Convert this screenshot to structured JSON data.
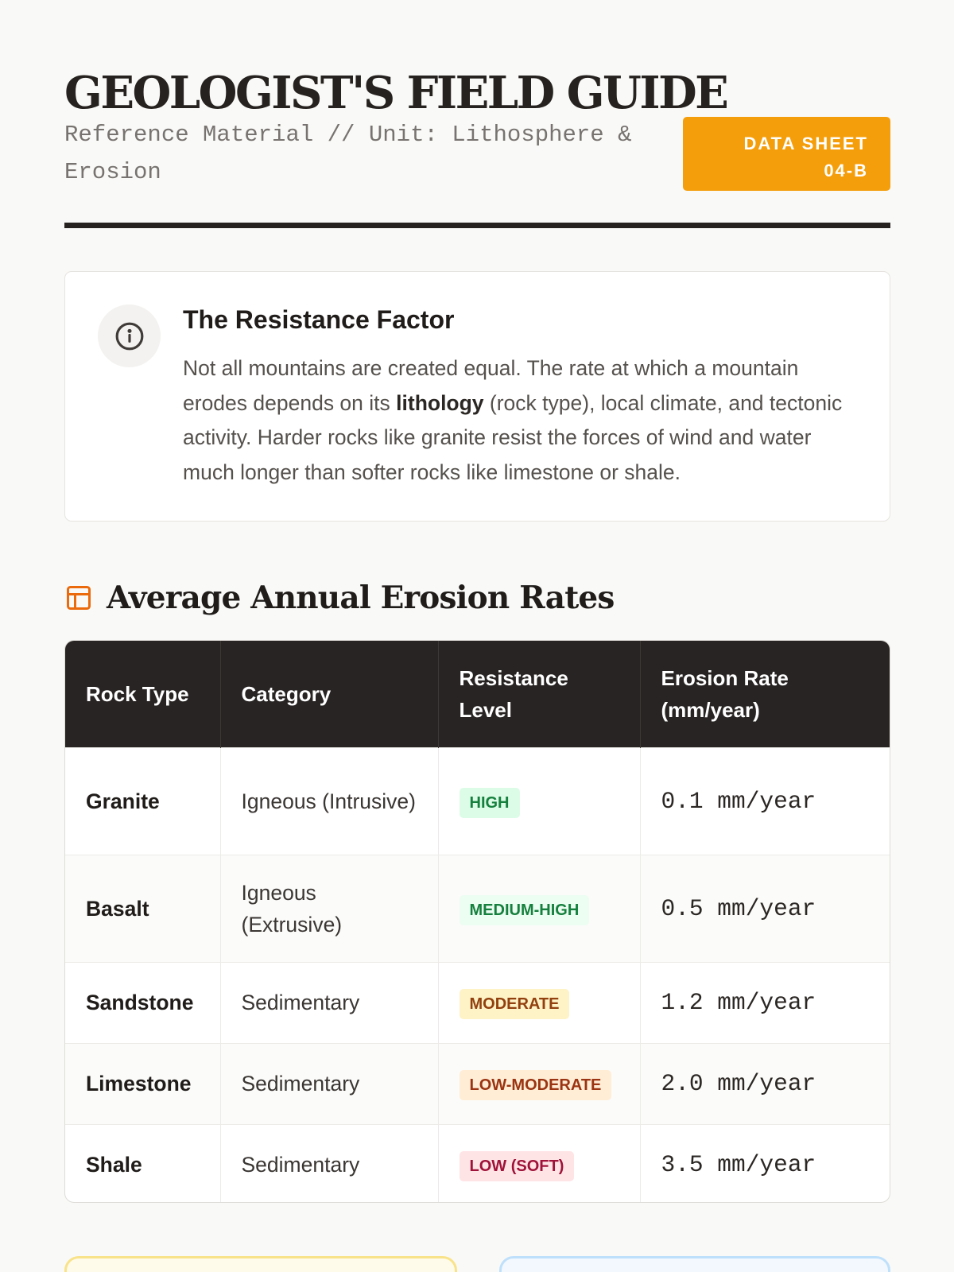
{
  "header": {
    "title": "GEOLOGIST'S FIELD GUIDE",
    "subtitle": "Reference Material // Unit: Lithosphere & Erosion",
    "badge_line1": "DATA SHEET",
    "badge_line2": "04-B",
    "badge_color": "#f59e0b"
  },
  "info_card": {
    "icon": "info-icon",
    "title": "The Resistance Factor",
    "body_before": "Not all mountains are created equal. The rate at which a mountain erodes depends on its ",
    "body_bold": "lithology",
    "body_after": " (rock type), local climate, and tectonic activity. Harder rocks like granite resist the forces of wind and water much longer than softer rocks like limestone or shale."
  },
  "section": {
    "icon": "table-icon",
    "title": "Average Annual Erosion Rates"
  },
  "table": {
    "headers": [
      "Rock Type",
      "Category",
      "Resistance Level",
      "Erosion Rate (mm/year)"
    ],
    "rows": [
      {
        "rock": "Granite",
        "category": "Igneous (Intrusive)",
        "resistance": "HIGH",
        "rate": "0.1 mm/year",
        "pill_bg": "#dcfce7",
        "pill_fg": "#15803d"
      },
      {
        "rock": "Basalt",
        "category": "Igneous (Extrusive)",
        "resistance": "MEDIUM-HIGH",
        "rate": "0.5 mm/year",
        "pill_bg": "#ecfdf2",
        "pill_fg": "#15803d"
      },
      {
        "rock": "Sandstone",
        "category": "Sedimentary",
        "resistance": "MODERATE",
        "rate": "1.2 mm/year",
        "pill_bg": "#fef3c7",
        "pill_fg": "#92400e"
      },
      {
        "rock": "Limestone",
        "category": "Sedimentary",
        "resistance": "LOW-MODERATE",
        "rate": "2.0 mm/year",
        "pill_bg": "#ffedd5",
        "pill_fg": "#9a3412"
      },
      {
        "rock": "Shale",
        "category": "Sedimentary",
        "resistance": "LOW (SOFT)",
        "rate": "3.5 mm/year",
        "pill_bg": "#ffe4e6",
        "pill_fg": "#9f1239"
      }
    ]
  }
}
